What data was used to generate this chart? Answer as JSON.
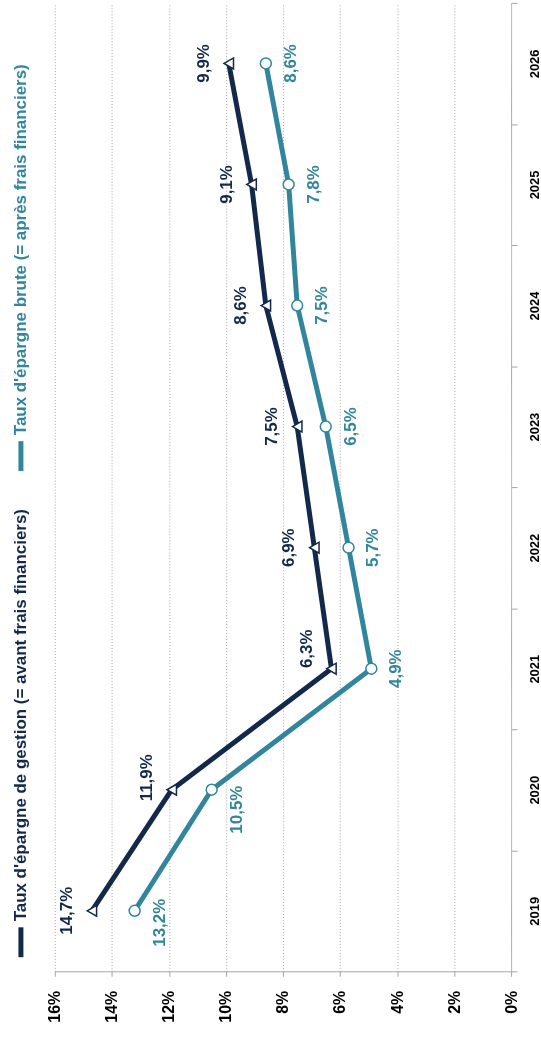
{
  "chart_data": {
    "type": "line",
    "orientation": "horizontal",
    "categories": [
      "2026",
      "2025",
      "2024",
      "2023",
      "2022",
      "2021",
      "2020",
      "2019"
    ],
    "series": [
      {
        "name": "Taux d'épargne de gestion (= avant frais financiers)",
        "color": "#13294b",
        "marker": "triangle",
        "values": [
          9.9,
          9.1,
          8.6,
          7.5,
          6.9,
          6.3,
          11.9,
          14.7
        ],
        "value_labels": [
          "9,9%",
          "9,1%",
          "8,6%",
          "7,5%",
          "6,9%",
          "6,3%",
          "11,9%",
          "14,7%"
        ]
      },
      {
        "name": "Taux d'épargne brute (= après frais financiers)",
        "color": "#31859c",
        "marker": "circle",
        "values": [
          8.6,
          7.8,
          7.5,
          6.5,
          5.7,
          4.9,
          10.5,
          13.2
        ],
        "value_labels": [
          "8,6%",
          "7,8%",
          "7,5%",
          "6,5%",
          "5,7%",
          "4,9%",
          "10,5%",
          "13,2%"
        ]
      }
    ],
    "xlim": [
      16,
      0
    ],
    "xticks": [
      {
        "value": 16,
        "label": "16%"
      },
      {
        "value": 14,
        "label": "14%"
      },
      {
        "value": 12,
        "label": "12%"
      },
      {
        "value": 10,
        "label": "10%"
      },
      {
        "value": 8,
        "label": "8%"
      },
      {
        "value": 6,
        "label": "6%"
      },
      {
        "value": 4,
        "label": "4%"
      },
      {
        "value": 2,
        "label": "2%"
      },
      {
        "value": 0,
        "label": "0%"
      }
    ],
    "grid": "x",
    "legend": "left"
  }
}
